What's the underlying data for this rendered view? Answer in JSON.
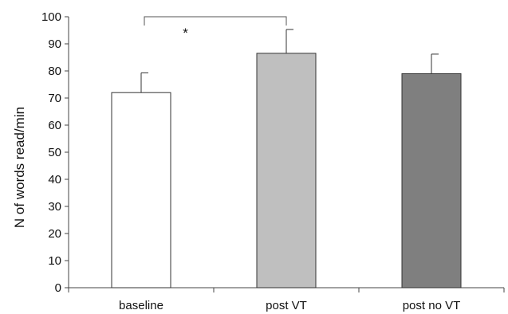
{
  "chart_data": {
    "type": "bar",
    "title": "",
    "xlabel": "",
    "ylabel": "N of words read/min",
    "ylim": [
      0,
      100
    ],
    "yticks": [
      0,
      10,
      20,
      30,
      40,
      50,
      60,
      70,
      80,
      90,
      100
    ],
    "categories": [
      "baseline",
      "post VT",
      "post no VT"
    ],
    "values": [
      72,
      86.5,
      79
    ],
    "error_upper": [
      7.3,
      8.8,
      7.2
    ],
    "bar_colors": [
      "#ffffff",
      "#bfbfbf",
      "#7f7f7f"
    ],
    "edge_color": "#333333",
    "grid": false,
    "legend": "none",
    "annotations": [
      {
        "type": "significance",
        "between": [
          "baseline",
          "post VT"
        ],
        "label": "*"
      }
    ]
  }
}
